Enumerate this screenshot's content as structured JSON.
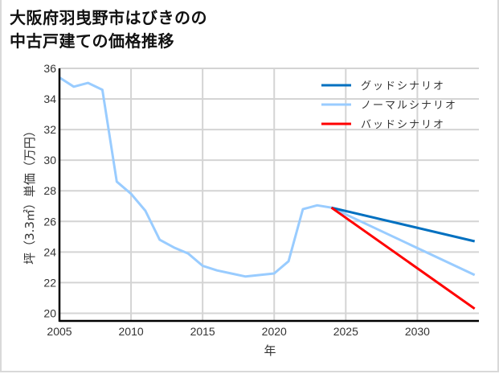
{
  "title": {
    "line1": "大阪府羽曳野市はびきのの",
    "line2": "中古戸建ての価格推移"
  },
  "chart_data": {
    "type": "line",
    "title": "大阪府羽曳野市はびきのの中古戸建ての価格推移",
    "xlabel": "年",
    "ylabel": "坪（3.3㎡）単価（万円）",
    "xlim": [
      2005,
      2034.3
    ],
    "ylim": [
      19.5,
      36
    ],
    "xticks": [
      2005,
      2010,
      2015,
      2020,
      2025,
      2030
    ],
    "yticks": [
      20,
      22,
      24,
      26,
      28,
      30,
      32,
      34,
      36
    ],
    "grid": true,
    "legend_position": "upper right",
    "series": [
      {
        "name": "グッドシナリオ",
        "color": "#0070c0",
        "x": [
          2024,
          2034
        ],
        "values": [
          26.9,
          24.7
        ]
      },
      {
        "name": "ノーマルシナリオ",
        "color": "#99ccff",
        "x": [
          2005,
          2006,
          2007,
          2008,
          2009,
          2010,
          2011,
          2012,
          2013,
          2014,
          2015,
          2016,
          2017,
          2018,
          2019,
          2020,
          2021,
          2022,
          2023,
          2024,
          2034
        ],
        "values": [
          35.4,
          34.8,
          35.05,
          34.6,
          28.6,
          27.8,
          26.7,
          24.8,
          24.3,
          23.9,
          23.1,
          22.8,
          22.6,
          22.4,
          22.5,
          22.6,
          23.4,
          26.8,
          27.05,
          26.9,
          22.5
        ]
      },
      {
        "name": "バッドシナリオ",
        "color": "#ff0000",
        "x": [
          2024,
          2034
        ],
        "values": [
          26.9,
          20.3
        ]
      }
    ]
  }
}
